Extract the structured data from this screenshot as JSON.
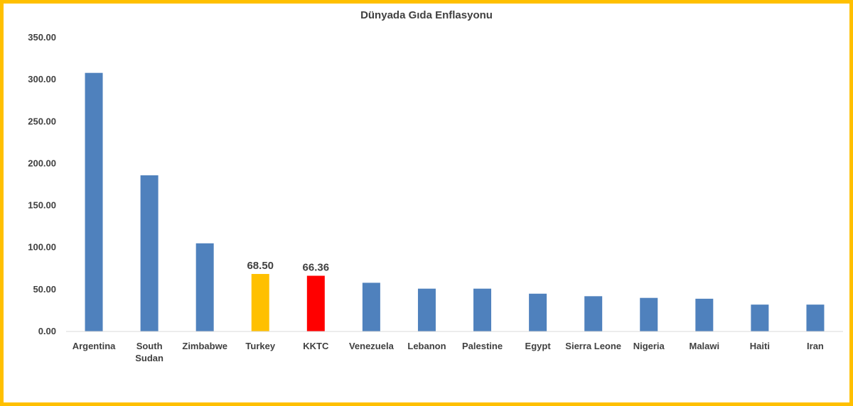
{
  "chart_data": {
    "type": "bar",
    "title": "Dünyada Gıda Enflasyonu",
    "xlabel": "",
    "ylabel": "",
    "ylim": [
      0,
      350
    ],
    "yticks": [
      "0.00",
      "50.00",
      "100.00",
      "150.00",
      "200.00",
      "250.00",
      "300.00",
      "350.00"
    ],
    "grid": false,
    "legend": "none",
    "categories": [
      "Argentina",
      "South Sudan",
      "Zimbabwe",
      "Turkey",
      "KKTC",
      "Venezuela",
      "Lebanon",
      "Palestine",
      "Egypt",
      "Sierra Leone",
      "Nigeria",
      "Malawi",
      "Haiti",
      "Iran"
    ],
    "category_lines": [
      [
        "Argentina"
      ],
      [
        "South",
        "Sudan"
      ],
      [
        "Zimbabwe"
      ],
      [
        "Turkey"
      ],
      [
        "KKTC"
      ],
      [
        "Venezuela"
      ],
      [
        "Lebanon"
      ],
      [
        "Palestine"
      ],
      [
        "Egypt"
      ],
      [
        "Sierra Leone"
      ],
      [
        "Nigeria"
      ],
      [
        "Malawi"
      ],
      [
        "Haiti"
      ],
      [
        "Iran"
      ]
    ],
    "values": [
      308,
      186,
      105,
      68.5,
      66.36,
      58,
      51,
      51,
      45,
      42,
      40,
      39,
      32,
      32
    ],
    "data_labels": [
      null,
      null,
      null,
      "68.50",
      "66.36",
      null,
      null,
      null,
      null,
      null,
      null,
      null,
      null,
      null
    ],
    "colors": [
      "#4f81bd",
      "#4f81bd",
      "#4f81bd",
      "#ffc000",
      "#ff0000",
      "#4f81bd",
      "#4f81bd",
      "#4f81bd",
      "#4f81bd",
      "#4f81bd",
      "#4f81bd",
      "#4f81bd",
      "#4f81bd",
      "#4f81bd"
    ],
    "frame_color": "#ffc000",
    "axis_color": "#d9d9d9"
  }
}
